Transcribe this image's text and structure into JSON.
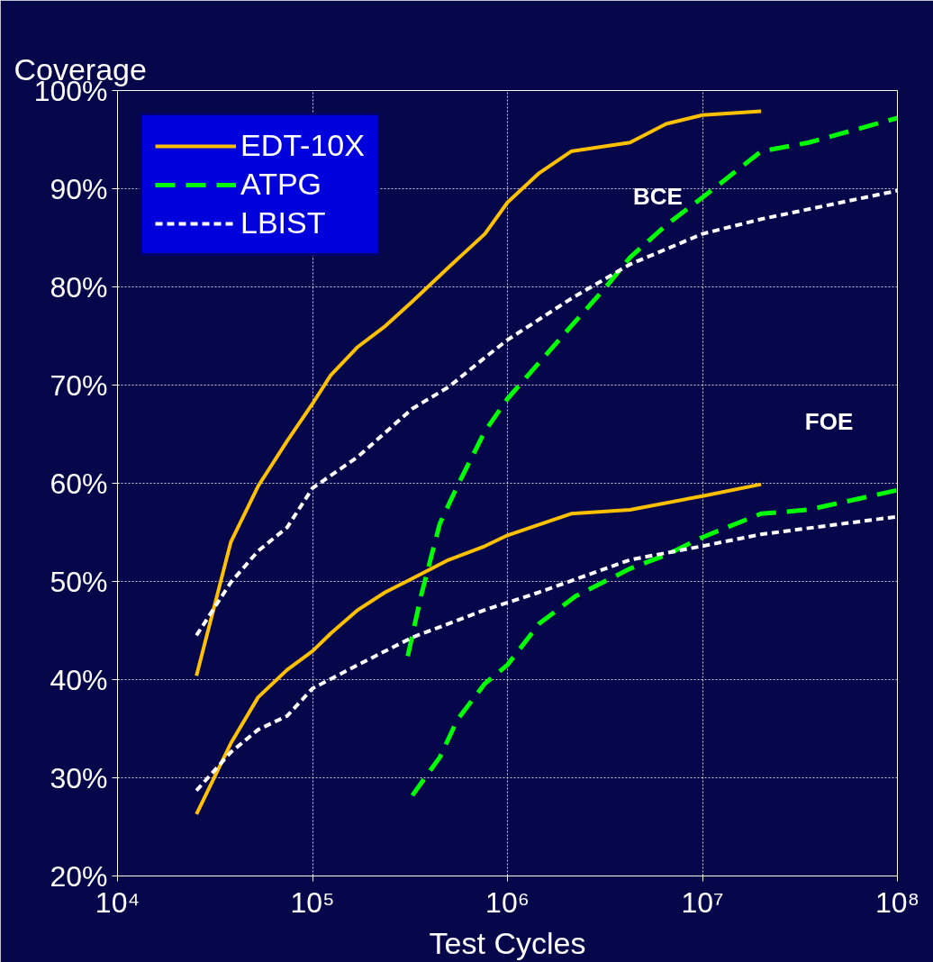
{
  "chart_data": {
    "type": "line",
    "ylabel": "Coverage",
    "xlabel": "Test Cycles",
    "log": "x",
    "grid": true,
    "legend": "top left",
    "marker": "none",
    "xlim": [
      10000,
      100000000
    ],
    "xticks": [
      {
        "value": 10000,
        "label": "10⁴"
      },
      {
        "value": 100000,
        "label": "10⁵"
      },
      {
        "value": 1000000,
        "label": "10⁶"
      },
      {
        "value": 10000000,
        "label": "10⁷"
      },
      {
        "value": 100000000,
        "label": "10⁸"
      }
    ],
    "ylim": [
      20,
      100
    ],
    "yticks": [
      {
        "value": 20,
        "label": "20%"
      },
      {
        "value": 30,
        "label": "30%"
      },
      {
        "value": 40,
        "label": "40%"
      },
      {
        "value": 50,
        "label": "50%"
      },
      {
        "value": 60,
        "label": "60%"
      },
      {
        "value": 70,
        "label": "70%"
      },
      {
        "value": 80,
        "label": "80%"
      },
      {
        "value": 90,
        "label": "90%"
      },
      {
        "value": 100,
        "label": "100%"
      }
    ],
    "annotations": [
      "BCE",
      "FOE"
    ],
    "series": [
      {
        "name": "EDT-10X",
        "color": "#ffc000",
        "line_style": "solid",
        "x": [
          25400,
          38100,
          52600,
          74100,
          100000,
          124000,
          171000,
          236000,
          325000,
          499000,
          766000,
          1000000,
          1455000,
          2120000,
          4250000,
          6520000,
          10000000,
          20000000
        ],
        "values": [
          40.4,
          54,
          59.7,
          64.3,
          68.1,
          71,
          73.9,
          76,
          78.5,
          82,
          85.4,
          88.6,
          91.6,
          93.8,
          94.7,
          96.6,
          97.5,
          97.9
        ]
      },
      {
        "name": "ATPG",
        "color": "#00ff00",
        "line_style": "dashed",
        "x": [
          308000,
          360000,
          450000,
          553000,
          766000,
          1000000,
          1455000,
          2120000,
          3140000,
          4250000,
          6520000,
          10000000,
          20000000,
          35000000,
          100000000
        ],
        "values": [
          42.4,
          48.5,
          55.9,
          59.7,
          65.3,
          68.6,
          72.3,
          76,
          79.8,
          83,
          86.3,
          89.1,
          93.8,
          94.7,
          97.2
        ]
      },
      {
        "name": "LBIST",
        "color": "#ffffff",
        "line_style": "dotted",
        "x": [
          25400,
          38100,
          52600,
          74100,
          100000,
          171000,
          325000,
          499000,
          766000,
          1000000,
          2120000,
          4250000,
          10000000,
          20000000,
          100000000
        ],
        "values": [
          44.5,
          49.9,
          53.1,
          55.5,
          59.5,
          62.7,
          67.6,
          69.8,
          72.8,
          74.6,
          78.8,
          82.3,
          85.4,
          86.9,
          89.8
        ]
      },
      {
        "color": "#ffc000",
        "line_style": "solid",
        "x": [
          25400,
          38100,
          52600,
          74100,
          100000,
          124000,
          171000,
          236000,
          325000,
          499000,
          766000,
          1000000,
          1455000,
          2120000,
          4250000,
          10000000,
          20000000
        ],
        "values": [
          26.3,
          33.5,
          38.2,
          41,
          42.9,
          44.7,
          47.1,
          48.9,
          50.3,
          52.2,
          53.6,
          54.7,
          55.8,
          56.9,
          57.3,
          58.7,
          59.9
        ]
      },
      {
        "color": "#00ff00",
        "line_style": "dashed",
        "x": [
          325000,
          450000,
          553000,
          766000,
          1000000,
          1455000,
          2240000,
          4250000,
          6520000,
          10000000,
          20000000,
          35000000,
          100000000
        ],
        "values": [
          28.2,
          32.1,
          35.9,
          39.6,
          41.5,
          45.7,
          48.5,
          51.3,
          52.7,
          54.5,
          56.9,
          57.3,
          59.3
        ]
      },
      {
        "color": "#ffffff",
        "line_style": "dotted",
        "x": [
          25400,
          38100,
          52600,
          74100,
          100000,
          171000,
          325000,
          766000,
          1455000,
          4250000,
          10000000,
          20000000,
          100000000
        ],
        "values": [
          28.7,
          32.6,
          34.9,
          36.3,
          39.1,
          41.5,
          44.3,
          47.1,
          48.9,
          52.2,
          53.6,
          54.8,
          56.6
        ]
      }
    ]
  }
}
